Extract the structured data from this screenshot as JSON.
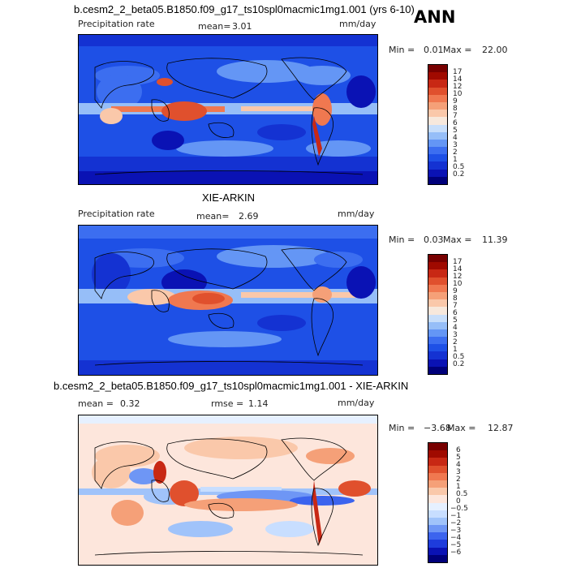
{
  "header": {
    "case_title": "b.cesm2_2_beta05.B1850.f09_g17_ts10spl0macmic1mg1.001 (yrs 6-10)",
    "season": "ANN"
  },
  "panels": [
    {
      "id": "model",
      "title": "",
      "left_label": "Precipitation rate",
      "stat1_label": "mean=",
      "stat1_value": "3.01",
      "stat2_label": "",
      "stat2_value": "",
      "units": "mm/day",
      "min_label": "Min =",
      "min_value": "0.01",
      "max_label": "Max =",
      "max_value": "22.00"
    },
    {
      "id": "obs",
      "title": "XIE-ARKIN",
      "left_label": "Precipitation rate",
      "stat1_label": "mean=",
      "stat1_value": "2.69",
      "stat2_label": "",
      "stat2_value": "",
      "units": "mm/day",
      "min_label": "Min =",
      "min_value": "0.03",
      "max_label": "Max =",
      "max_value": "11.39"
    },
    {
      "id": "diff",
      "title": "b.cesm2_2_beta05.B1850.f09_g17_ts10spl0macmic1mg1.001 - XIE-ARKIN",
      "left_label": "",
      "stat1_label": "mean =",
      "stat1_value": "0.32",
      "stat2_label": "rmse =",
      "stat2_value": "1.14",
      "units": "mm/day",
      "min_label": "Min =",
      "min_value": "−3.68",
      "max_label": "Max =",
      "max_value": "12.87"
    }
  ],
  "chart_data": [
    {
      "type": "heatmap",
      "panel": "model",
      "variable": "Precipitation rate",
      "units": "mm/day",
      "mean": 3.01,
      "min": 0.01,
      "max": 22.0,
      "colorbar_levels": [
        "0.2",
        "0.5",
        "1",
        "2",
        "3",
        "4",
        "5",
        "6",
        "7",
        "8",
        "9",
        "10",
        "12",
        "14",
        "17"
      ],
      "colorbar_colors": [
        "#00007a",
        "#0a12b4",
        "#1432d2",
        "#1e50e6",
        "#3c6ef0",
        "#6496f5",
        "#96bef8",
        "#c8defa",
        "#f7e8dc",
        "#fac8aa",
        "#f5a078",
        "#f07850",
        "#e0502d",
        "#c82814",
        "#a00a00",
        "#780000"
      ]
    },
    {
      "type": "heatmap",
      "panel": "obs",
      "title": "XIE-ARKIN",
      "variable": "Precipitation rate",
      "units": "mm/day",
      "mean": 2.69,
      "min": 0.03,
      "max": 11.39,
      "colorbar_levels": [
        "0.2",
        "0.5",
        "1",
        "2",
        "3",
        "4",
        "5",
        "6",
        "7",
        "8",
        "9",
        "10",
        "12",
        "14",
        "17"
      ],
      "colorbar_colors": [
        "#00007a",
        "#0a12b4",
        "#1432d2",
        "#1e50e6",
        "#3c6ef0",
        "#6496f5",
        "#96bef8",
        "#c8defa",
        "#f7e8dc",
        "#fac8aa",
        "#f5a078",
        "#f07850",
        "#e0502d",
        "#c82814",
        "#a00a00",
        "#780000"
      ]
    },
    {
      "type": "heatmap",
      "panel": "diff",
      "title": "b.cesm2_2_beta05.B1850.f09_g17_ts10spl0macmic1mg1.001 - XIE-ARKIN",
      "units": "mm/day",
      "mean": 0.32,
      "rmse": 1.14,
      "min": -3.68,
      "max": 12.87,
      "colorbar_levels": [
        "−6",
        "−5",
        "−4",
        "−3",
        "−2",
        "−1",
        "−0.5",
        "0",
        "0.5",
        "1",
        "2",
        "3",
        "4",
        "5",
        "6"
      ],
      "colorbar_colors": [
        "#00007a",
        "#0a12b4",
        "#1e3cdc",
        "#3c64ee",
        "#6e96f5",
        "#a0c3fa",
        "#c8deff",
        "#e6f0ff",
        "#fde6dc",
        "#fac8aa",
        "#f5a078",
        "#f07850",
        "#e0502d",
        "#c82814",
        "#a00a00",
        "#780000"
      ]
    }
  ]
}
